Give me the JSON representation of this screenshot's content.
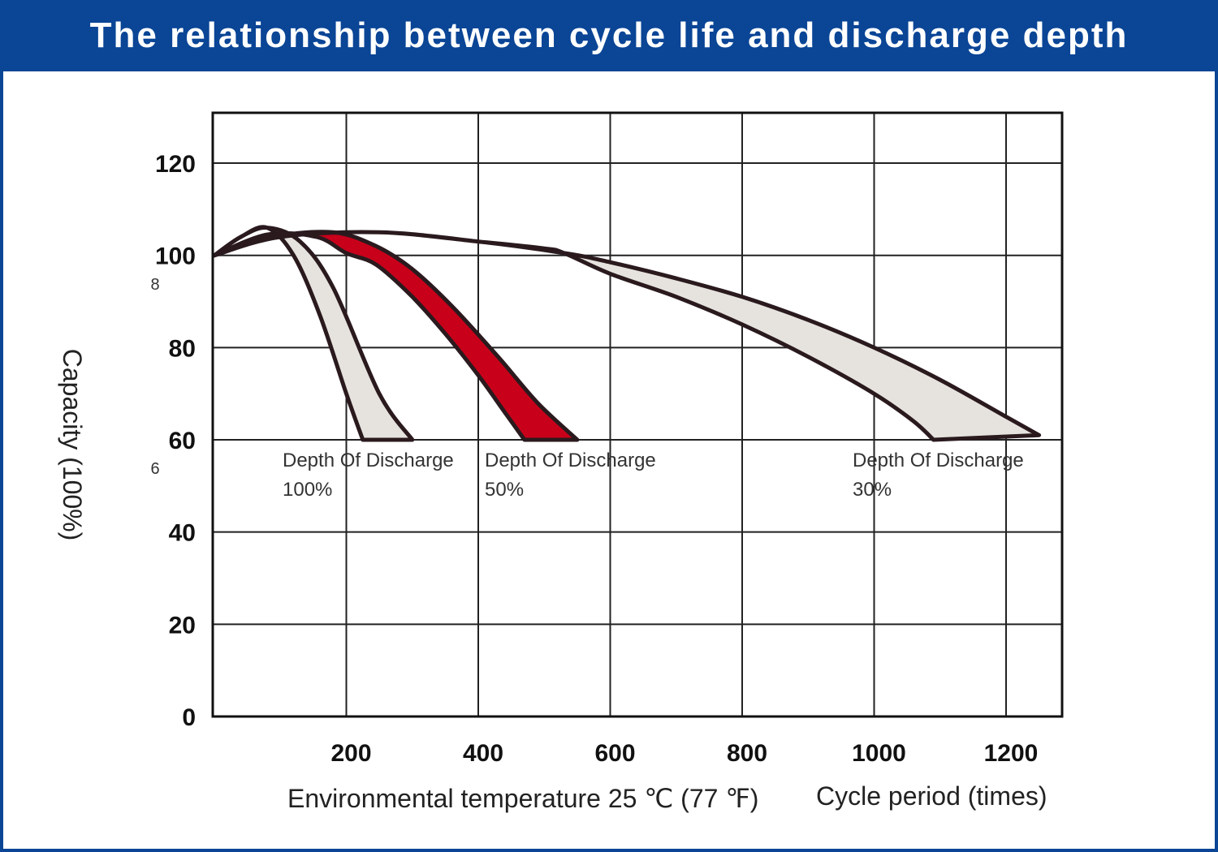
{
  "title": "The relationship between cycle life and discharge depth",
  "colors": {
    "header": "#0a4596",
    "band_fill": "#e6e3de",
    "band_highlight": "#c8001a",
    "curve_stroke": "#2a1a1e",
    "grid": "#222222"
  },
  "chart_data": {
    "type": "area",
    "title": "The relationship between cycle life and discharge depth",
    "xlabel": "Cycle period (times)",
    "xlabel_note": "Environmental temperature 25 ℃ (77 ℉)",
    "ylabel": "Capacity (100%)",
    "xlim": [
      0,
      1280
    ],
    "ylim": [
      0,
      130
    ],
    "x_ticks": [
      "200",
      "400",
      "600",
      "800",
      "1000",
      "1200"
    ],
    "x_tick_values": [
      200,
      400,
      600,
      800,
      1000,
      1200
    ],
    "y_ticks": [
      "0",
      "20",
      "40",
      "60",
      "80",
      "100",
      "120"
    ],
    "y_tick_values": [
      0,
      20,
      40,
      60,
      80,
      100,
      120
    ],
    "stray_labels": [
      {
        "text": "8",
        "near_y": 94
      },
      {
        "text": "6",
        "near_y": 54
      }
    ],
    "grid": true,
    "series": [
      {
        "name": "Depth Of Discharge 100%",
        "label_line1": "Depth Of Discharge",
        "label_line2": "100%",
        "fill": "band_fill",
        "upper": {
          "x": [
            0,
            40,
            80,
            130,
            180,
            250,
            300
          ],
          "y": [
            100,
            104,
            106,
            103,
            93,
            70,
            60
          ]
        },
        "lower": {
          "x": [
            0,
            40,
            80,
            120,
            160,
            200,
            225
          ],
          "y": [
            100,
            104,
            106,
            100,
            87,
            70,
            60
          ]
        }
      },
      {
        "name": "Depth Of Discharge 50%",
        "label_line1": "Depth Of Discharge",
        "label_line2": "50%",
        "fill": "band_highlight",
        "upper": {
          "x": [
            0,
            90,
            180,
            245,
            300,
            360,
            430,
            490,
            550
          ],
          "y": [
            100,
            104,
            105,
            102,
            97,
            89,
            78,
            68,
            60
          ]
        },
        "lower": {
          "x": [
            0,
            80,
            155,
            200,
            245,
            300,
            350,
            400,
            440,
            470
          ],
          "y": [
            100,
            104.5,
            104,
            100.5,
            98,
            91,
            83,
            74,
            66,
            60
          ]
        }
      },
      {
        "name": "Depth Of Discharge 30%",
        "label_line1": "Depth Of Discharge",
        "label_line2": "30%",
        "fill": "band_fill",
        "upper": {
          "x": [
            0,
            100,
            250,
            400,
            530,
            600,
            700,
            800,
            900,
            1000,
            1100,
            1200,
            1250
          ],
          "y": [
            100,
            104,
            105,
            103,
            100.5,
            98.5,
            95,
            91,
            86,
            80,
            73,
            65,
            61
          ]
        },
        "lower": {
          "x": [
            0,
            100,
            250,
            400,
            500,
            530,
            600,
            700,
            800,
            900,
            1000,
            1060,
            1090
          ],
          "y": [
            100,
            104,
            105,
            103,
            101.5,
            100.5,
            96,
            91,
            85,
            78,
            70,
            64,
            60
          ]
        }
      }
    ]
  }
}
